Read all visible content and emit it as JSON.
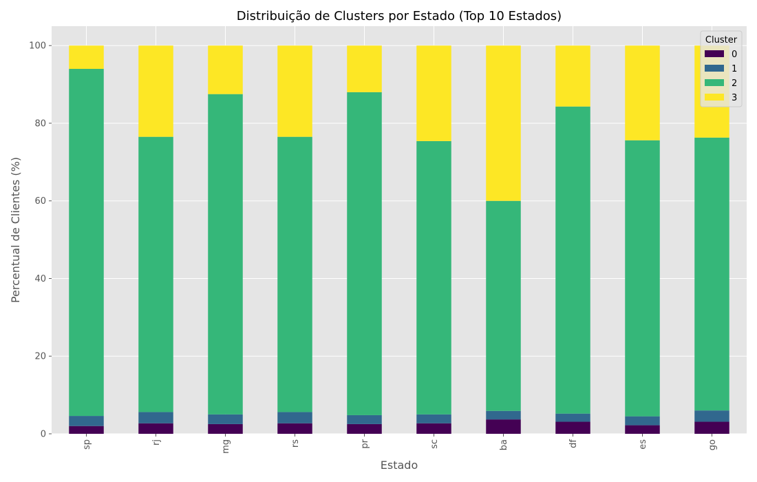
{
  "chart_data": {
    "type": "bar",
    "stacked": true,
    "title": "Distribuição de Clusters por Estado (Top 10 Estados)",
    "xlabel": "Estado",
    "ylabel": "Percentual de Clientes (%)",
    "ylim": [
      0,
      105
    ],
    "yticks": [
      0,
      20,
      40,
      60,
      80,
      100
    ],
    "grid": true,
    "legend_title": "Cluster",
    "legend_position": "top-right",
    "categories": [
      "sp",
      "rj",
      "mg",
      "rs",
      "pr",
      "sc",
      "ba",
      "df",
      "es",
      "go"
    ],
    "series": [
      {
        "name": "0",
        "color": "#440154",
        "values": [
          2.0,
          2.7,
          2.5,
          2.7,
          2.5,
          2.7,
          3.7,
          3.1,
          2.2,
          3.1
        ]
      },
      {
        "name": "1",
        "color": "#31688e",
        "values": [
          2.6,
          2.9,
          2.5,
          2.9,
          2.3,
          2.3,
          2.2,
          2.1,
          2.3,
          2.9
        ]
      },
      {
        "name": "2",
        "color": "#35b779",
        "values": [
          89.4,
          70.9,
          82.5,
          70.9,
          83.2,
          70.4,
          54.1,
          79.1,
          71.1,
          70.3
        ]
      },
      {
        "name": "3",
        "color": "#fde725",
        "values": [
          6.0,
          23.5,
          12.5,
          23.5,
          12.0,
          24.6,
          40.0,
          15.7,
          24.4,
          23.7
        ]
      }
    ]
  }
}
